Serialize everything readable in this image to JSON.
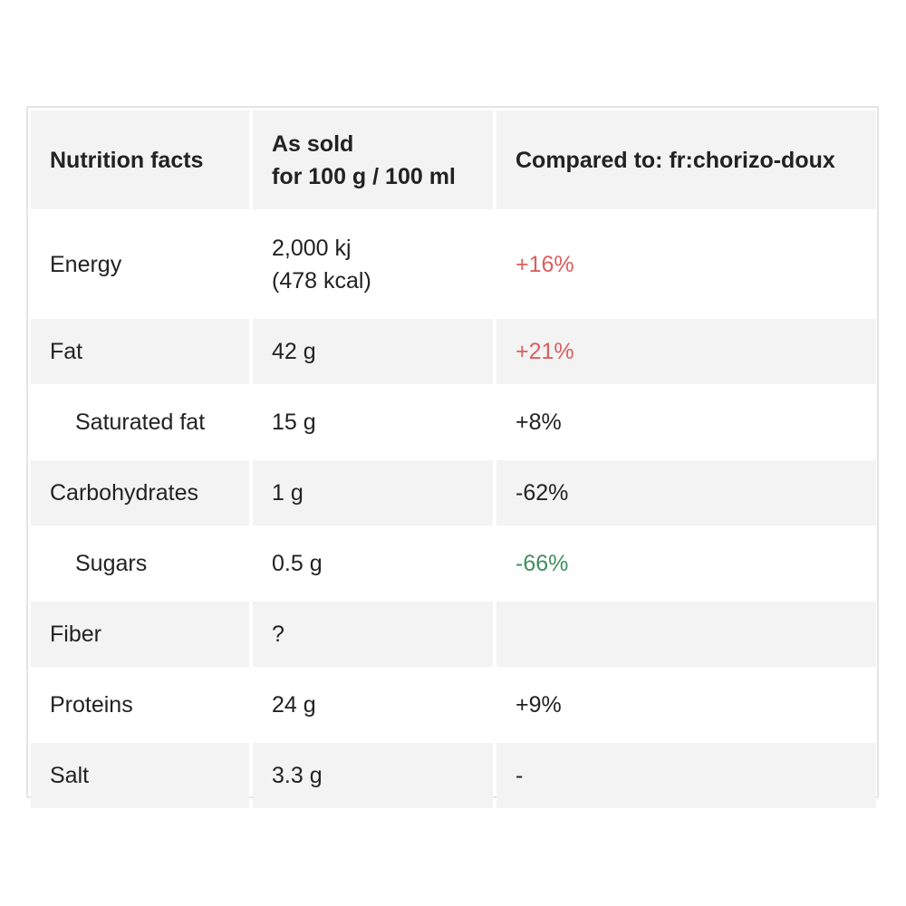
{
  "header": {
    "col1": "Nutrition facts",
    "col2_line1": "As sold",
    "col2_line2": "for 100 g / 100 ml",
    "col3": "Compared to: fr:chorizo-doux"
  },
  "rows": [
    {
      "name": "Energy",
      "value_line1": "2,000 kj",
      "value_line2": "(478 kcal)",
      "compare": "+16%",
      "compare_color": "#d9605f"
    },
    {
      "name": "Fat",
      "value": "42 g",
      "compare": "+21%",
      "compare_color": "#d9605f"
    },
    {
      "name": "Saturated fat",
      "value": "15 g",
      "compare": "+8%",
      "compare_color": "#222222"
    },
    {
      "name": "Carbohydrates",
      "value": "1 g",
      "compare": "-62%",
      "compare_color": "#222222"
    },
    {
      "name": "Sugars",
      "value": "0.5 g",
      "compare": "-66%",
      "compare_color": "#3f8f5c"
    },
    {
      "name": "Fiber",
      "value": "?",
      "compare": "",
      "compare_color": "#222222"
    },
    {
      "name": "Proteins",
      "value": "24 g",
      "compare": "+9%",
      "compare_color": "#222222"
    },
    {
      "name": "Salt",
      "value": "3.3 g",
      "compare": "-",
      "compare_color": "#222222"
    }
  ]
}
